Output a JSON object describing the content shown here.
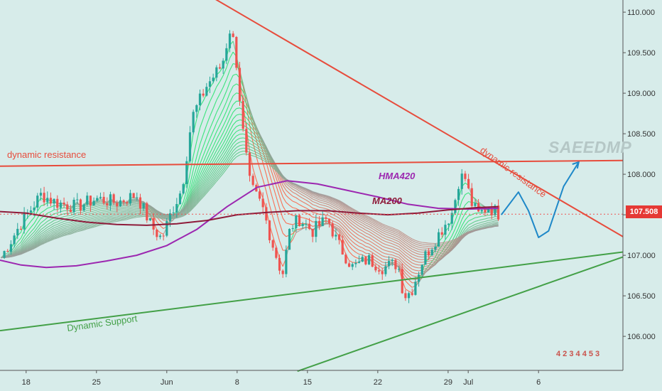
{
  "watermark": "SAEEDMP",
  "brand_mark": "4 2 3 4 4 5 3",
  "last_price_label": "107.508",
  "colors": {
    "background": "#d7ecea",
    "up_candle": "#26a69a",
    "down_candle": "#ef5350",
    "resistance": "#e74c3c",
    "support": "#43a047",
    "hma420": "#9c27b0",
    "ma200": "#8e1b3a",
    "projection": "#1e88c8",
    "ribbon_rising": "#21e36a",
    "ribbon_falling": "#ff5a3c",
    "ribbon_neutral": "#9e9e9e"
  },
  "chart_data": {
    "type": "candlestick",
    "title": "",
    "y_axis": {
      "side": "right",
      "ylim": [
        105.58,
        110.15
      ],
      "ticks": [
        "110.000",
        "109.500",
        "109.000",
        "108.500",
        "108.000",
        "107.500",
        "107.000",
        "106.500",
        "106.000"
      ]
    },
    "x_axis": {
      "xlim": [
        15.4,
        77.4
      ],
      "ticks": [
        {
          "pos": 18,
          "label": "18"
        },
        {
          "pos": 25,
          "label": "25"
        },
        {
          "pos": 32,
          "label": "Jun"
        },
        {
          "pos": 39,
          "label": "8"
        },
        {
          "pos": 46,
          "label": "15"
        },
        {
          "pos": 53,
          "label": "22"
        },
        {
          "pos": 60,
          "label": "29"
        },
        {
          "pos": 62,
          "label": "Jul"
        },
        {
          "pos": 69,
          "label": "6"
        }
      ]
    },
    "grid": false,
    "series": [
      {
        "name": "HMA420",
        "color": "#9c27b0",
        "x": [
          15.4,
          17.5,
          20,
          23,
          26,
          29,
          32,
          35,
          38,
          41,
          44,
          47,
          50,
          53,
          56,
          59,
          62,
          65
        ],
        "y": [
          106.94,
          106.88,
          106.85,
          106.87,
          106.93,
          107.0,
          107.12,
          107.32,
          107.6,
          107.84,
          107.92,
          107.88,
          107.8,
          107.72,
          107.63,
          107.58,
          107.57,
          107.58
        ]
      },
      {
        "name": "MA200",
        "color": "#8e1b3a",
        "x": [
          15.4,
          18,
          21,
          24,
          27,
          30,
          33,
          36,
          39,
          42,
          45,
          48,
          51,
          54,
          57,
          60,
          63,
          65
        ],
        "y": [
          107.54,
          107.52,
          107.46,
          107.41,
          107.38,
          107.37,
          107.39,
          107.43,
          107.5,
          107.53,
          107.55,
          107.55,
          107.52,
          107.5,
          107.52,
          107.56,
          107.59,
          107.6
        ]
      }
    ],
    "price_path": {
      "x": [
        15.4,
        17.5,
        19.5,
        21,
        23,
        25,
        27,
        29,
        30.5,
        31.5,
        32.5,
        33.5,
        34.5,
        36,
        37.5,
        38.3,
        38.8,
        39.6,
        40.3,
        41.5,
        42.5,
        43.5,
        44.3,
        45.2,
        46.5,
        48,
        49,
        50.5,
        52,
        53.5,
        55,
        55.6,
        56.3,
        57.5,
        59,
        60.5,
        61,
        61.6,
        62.3,
        63,
        64,
        65.2
      ],
      "y": [
        106.95,
        107.4,
        107.75,
        107.65,
        107.6,
        107.7,
        107.65,
        107.75,
        107.35,
        107.2,
        107.55,
        107.82,
        108.7,
        109.1,
        109.35,
        109.8,
        109.55,
        108.5,
        107.85,
        107.6,
        107.15,
        106.75,
        107.35,
        107.45,
        107.3,
        107.45,
        107.15,
        106.85,
        106.95,
        106.85,
        106.9,
        106.5,
        106.55,
        106.95,
        107.25,
        107.55,
        107.9,
        108.0,
        107.65,
        107.5,
        107.6,
        107.5
      ]
    },
    "projection_path": {
      "x": [
        65.3,
        67,
        68,
        69,
        70,
        71.5,
        73
      ],
      "y": [
        107.5,
        107.78,
        107.55,
        107.22,
        107.3,
        107.85,
        108.15
      ]
    },
    "trendlines": [
      {
        "name": "dynamic-resistance-horizontal",
        "x": [
          15.4,
          77.4
        ],
        "y": [
          108.1,
          108.17
        ]
      },
      {
        "name": "dynamic-resistance-falling",
        "x": [
          36,
          77.4
        ],
        "y": [
          110.22,
          107.23
        ]
      },
      {
        "name": "dynamic-support-upper",
        "x": [
          15.4,
          77.4
        ],
        "y": [
          106.07,
          107.04
        ]
      },
      {
        "name": "dynamic-support-lower",
        "x": [
          45,
          77.4
        ],
        "y": [
          105.57,
          106.98
        ]
      }
    ],
    "current_price": 107.508,
    "annotations": [
      {
        "text": "dynamic resistance",
        "color": "#e74c3c"
      },
      {
        "text": "dynamic resistance",
        "color": "#e74c3c"
      },
      {
        "text": "Dynamic Support",
        "color": "#43a047"
      },
      {
        "text": "HMA420",
        "color": "#9c27b0"
      },
      {
        "text": "MA200",
        "color": "#8e1b3a"
      }
    ]
  }
}
